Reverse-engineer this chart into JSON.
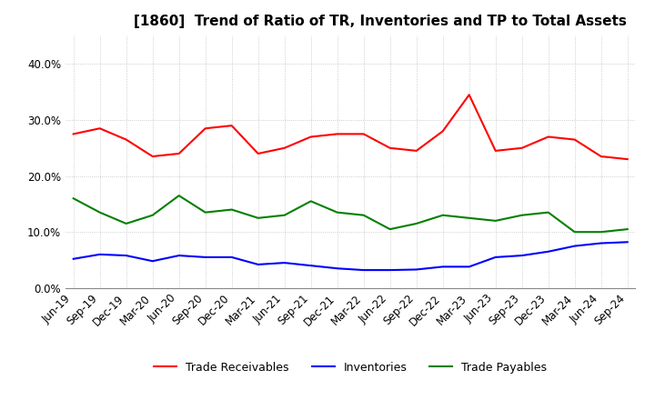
{
  "title": "[1860]  Trend of Ratio of TR, Inventories and TP to Total Assets",
  "x_labels": [
    "Jun-19",
    "Sep-19",
    "Dec-19",
    "Mar-20",
    "Jun-20",
    "Sep-20",
    "Dec-20",
    "Mar-21",
    "Jun-21",
    "Sep-21",
    "Dec-21",
    "Mar-22",
    "Jun-22",
    "Sep-22",
    "Dec-22",
    "Mar-23",
    "Jun-23",
    "Sep-23",
    "Dec-23",
    "Mar-24",
    "Jun-24",
    "Sep-24"
  ],
  "trade_receivables": [
    27.5,
    28.5,
    26.5,
    23.5,
    24.0,
    28.5,
    29.0,
    24.0,
    25.0,
    27.0,
    27.5,
    27.5,
    25.0,
    24.5,
    28.0,
    34.5,
    24.5,
    25.0,
    27.0,
    26.5,
    23.5,
    23.0
  ],
  "inventories": [
    5.2,
    6.0,
    5.8,
    4.8,
    5.8,
    5.5,
    5.5,
    4.2,
    4.5,
    4.0,
    3.5,
    3.2,
    3.2,
    3.3,
    3.8,
    3.8,
    5.5,
    5.8,
    6.5,
    7.5,
    8.0,
    8.2
  ],
  "trade_payables": [
    16.0,
    13.5,
    11.5,
    13.0,
    16.5,
    13.5,
    14.0,
    12.5,
    13.0,
    15.5,
    13.5,
    13.0,
    10.5,
    11.5,
    13.0,
    12.5,
    12.0,
    13.0,
    13.5,
    10.0,
    10.0,
    10.5
  ],
  "tr_color": "#ff0000",
  "inv_color": "#0000ff",
  "tp_color": "#008000",
  "ylim": [
    0,
    45
  ],
  "yticks": [
    0.0,
    10.0,
    20.0,
    30.0,
    40.0
  ],
  "ytick_labels": [
    "0.0%",
    "10.0%",
    "20.0%",
    "30.0%",
    "40.0%"
  ],
  "legend_labels": [
    "Trade Receivables",
    "Inventories",
    "Trade Payables"
  ],
  "background_color": "#ffffff",
  "grid_color": "#b0b0b0",
  "line_width": 1.5,
  "title_fontsize": 11,
  "tick_fontsize": 8.5,
  "legend_fontsize": 9
}
